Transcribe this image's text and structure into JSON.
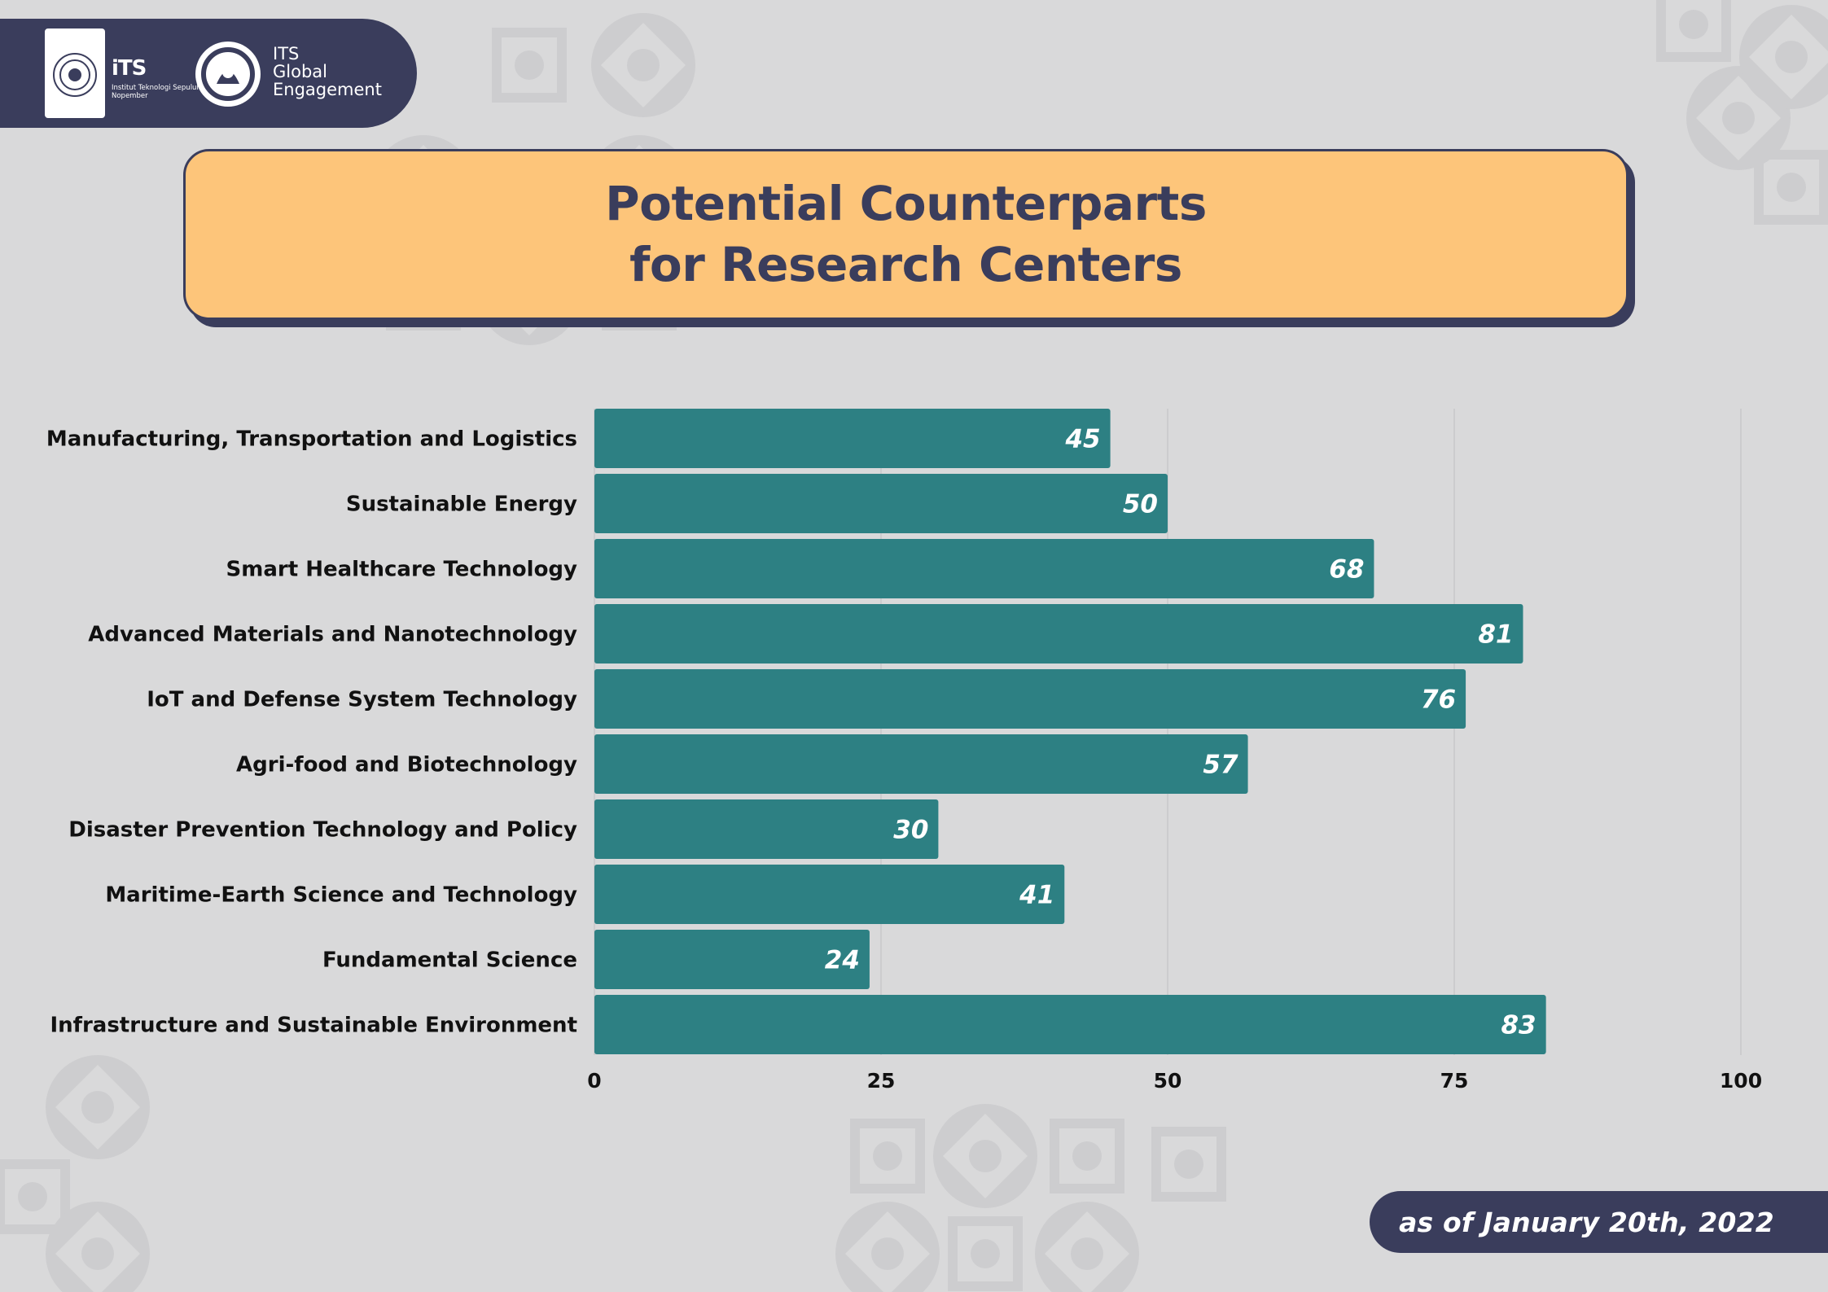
{
  "header": {
    "its_word": "iTS",
    "its_subtitle": "Institut Teknologi Sepuluh Nopember",
    "ge_line1": "ITS",
    "ge_line2": "Global",
    "ge_line3": "Engagement"
  },
  "title": {
    "line1": "Potential Counterparts",
    "line2": "for Research Centers"
  },
  "footer": {
    "date": "as of January 20th, 2022"
  },
  "colors": {
    "bar": "#2d8083",
    "navy": "#3a3d5c",
    "banner": "#fdc57a",
    "background": "#d9d9da",
    "grid": "#c7c7c9"
  },
  "chart_data": {
    "type": "bar",
    "orientation": "horizontal",
    "title": "Potential Counterparts for Research Centers",
    "categories": [
      "Manufacturing, Transportation and Logistics",
      "Sustainable Energy",
      "Smart Healthcare Technology",
      "Advanced Materials and Nanotechnology",
      "IoT and Defense System Technology",
      "Agri-food and Biotechnology",
      "Disaster Prevention Technology and Policy",
      "Maritime-Earth Science and Technology",
      "Fundamental Science",
      "Infrastructure and Sustainable Environment"
    ],
    "values": [
      45,
      50,
      68,
      81,
      76,
      57,
      30,
      41,
      24,
      83
    ],
    "xlim": [
      0,
      100
    ],
    "xticks": [
      0,
      25,
      50,
      75,
      100
    ],
    "xlabel": "",
    "ylabel": "",
    "grid": true,
    "legend": "none"
  }
}
